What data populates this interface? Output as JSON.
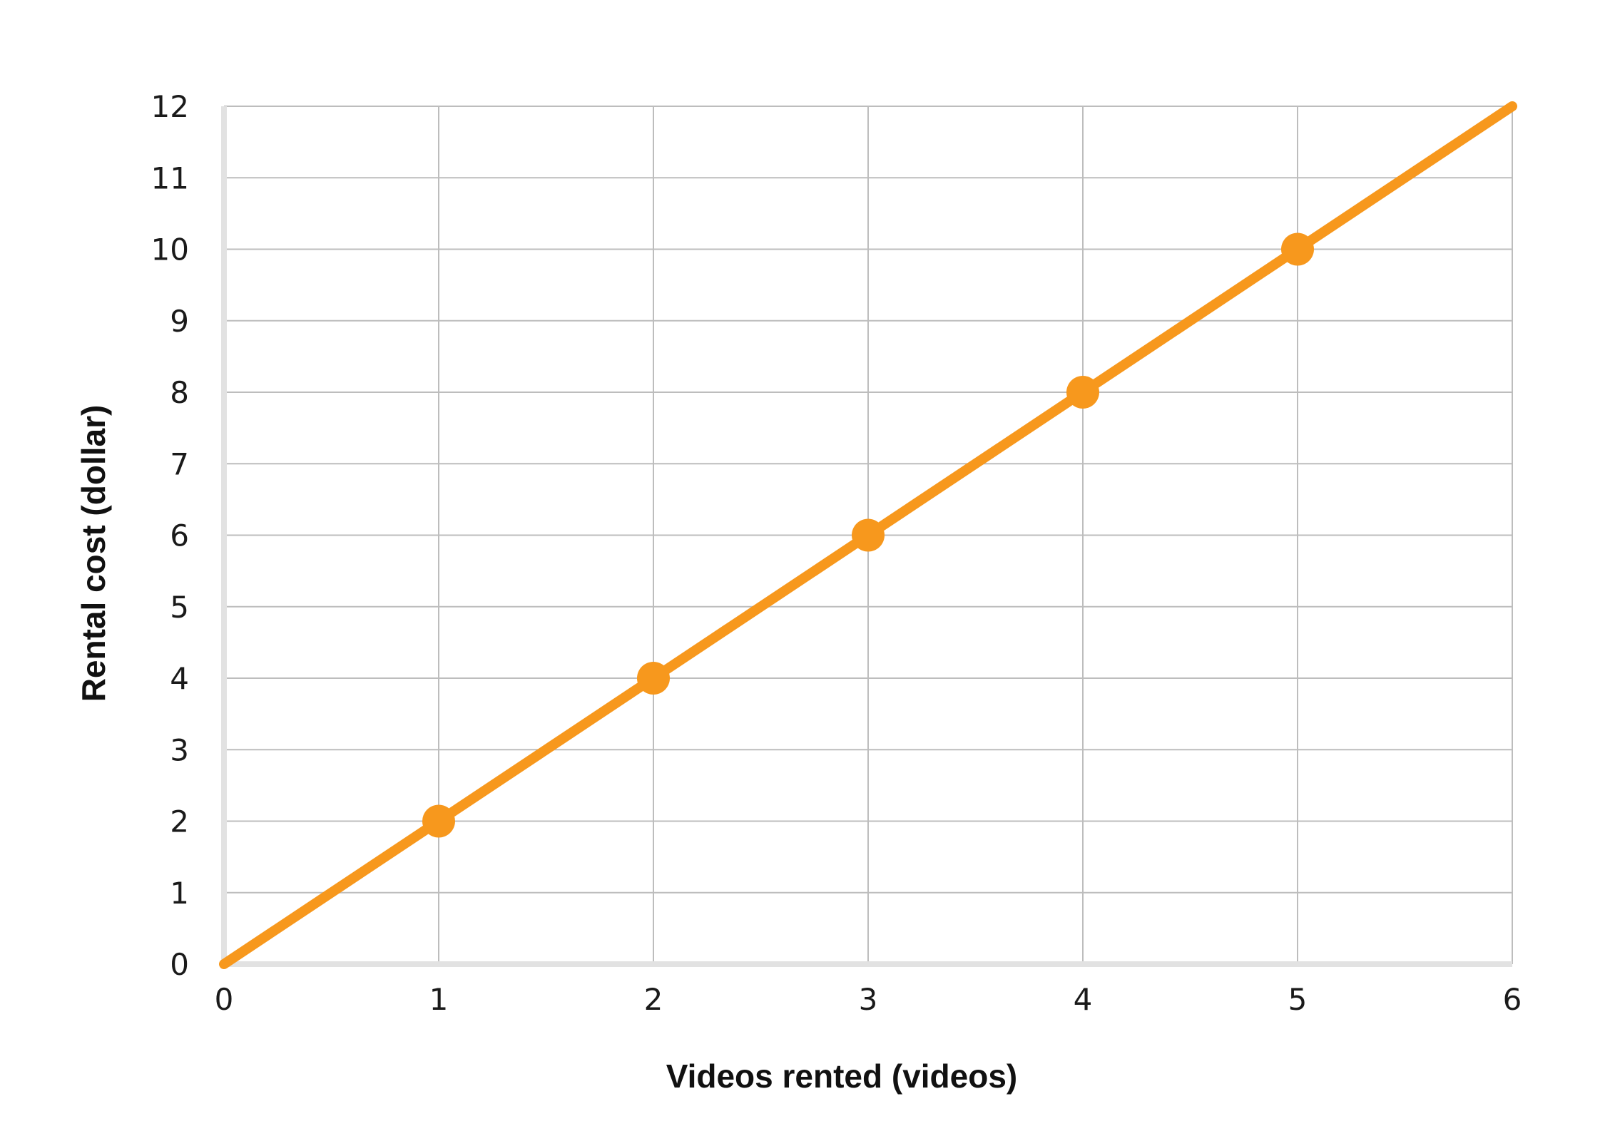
{
  "chart_data": {
    "type": "line",
    "title": "",
    "xlabel": "Videos rented (videos)",
    "ylabel": "Rental cost (dollar)",
    "xlim": [
      0,
      6
    ],
    "ylim": [
      0,
      12
    ],
    "x_ticks": [
      "0",
      "1",
      "2",
      "3",
      "4",
      "5",
      "6"
    ],
    "y_ticks": [
      "0",
      "1",
      "2",
      "3",
      "4",
      "5",
      "6",
      "7",
      "8",
      "9",
      "10",
      "11",
      "12"
    ],
    "grid": true,
    "legend": "none",
    "line": {
      "x": [
        0,
        6
      ],
      "y": [
        0,
        12
      ]
    },
    "points": {
      "x": [
        1,
        2,
        3,
        4,
        5
      ],
      "y": [
        2,
        4,
        6,
        8,
        10
      ]
    },
    "colors": {
      "series": "#F7981D",
      "grid": "#bdbdbd",
      "axis": "#e2e2e2"
    }
  }
}
